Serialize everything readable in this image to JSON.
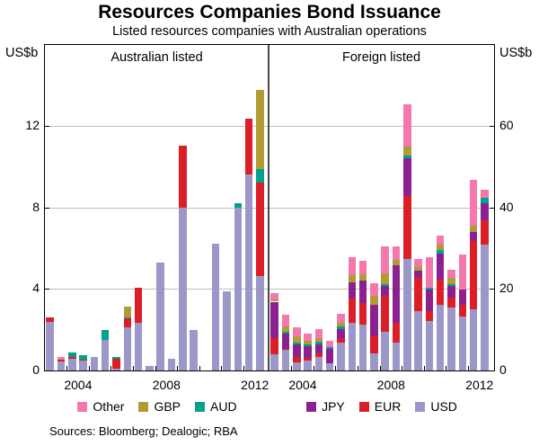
{
  "title": "Resources Companies Bond Issuance",
  "subtitle": "Listed resources companies with Australian operations",
  "axis": {
    "left_unit": "US$b",
    "right_unit": "US$b",
    "left_ticks": [
      0,
      4,
      8,
      12
    ],
    "right_ticks": [
      0,
      20,
      40,
      60
    ],
    "left_max": 16,
    "right_max": 80,
    "gridlines_left_scale": [
      4,
      8,
      12
    ]
  },
  "footer": {
    "sources": "Sources: Bloomberg; Dealogic; RBA"
  },
  "chart_data": {
    "type": "bar",
    "stacked": true,
    "frequency": "half-yearly",
    "grid": true,
    "categories": [
      "2003H1",
      "2003H2",
      "2004H1",
      "2004H2",
      "2005H1",
      "2005H2",
      "2006H1",
      "2006H2",
      "2007H1",
      "2007H2",
      "2008H1",
      "2008H2",
      "2009H1",
      "2009H2",
      "2010H1",
      "2010H2",
      "2011H1",
      "2011H2",
      "2012H1",
      "2012H2"
    ],
    "colors": {
      "Other": "#f478ad",
      "GBP": "#b09c33",
      "AUD": "#00a28f",
      "JPY": "#8b2191",
      "EUR": "#dc1f26",
      "USD": "#9b98c9"
    },
    "stack_order": [
      "USD",
      "EUR",
      "JPY",
      "AUD",
      "GBP",
      "Other"
    ],
    "legend": [
      {
        "label": "Other",
        "color": "#f478ad"
      },
      {
        "label": "GBP",
        "color": "#b09c33"
      },
      {
        "label": "AUD",
        "color": "#00a28f"
      },
      {
        "label": "JPY",
        "color": "#8b2191"
      },
      {
        "label": "EUR",
        "color": "#dc1f26"
      },
      {
        "label": "USD",
        "color": "#9b98c9"
      }
    ],
    "panels": [
      {
        "label": "Australian listed",
        "axis_side": "left",
        "ylim": [
          0,
          16
        ],
        "unit": "US$b",
        "x_tick_years": [
          2004,
          2008,
          2012
        ],
        "series": [
          {
            "name": "USD",
            "values": [
              2.35,
              0.4,
              0.55,
              0.45,
              0.62,
              1.5,
              0.05,
              2.1,
              2.3,
              0.2,
              5.3,
              0.55,
              8.0,
              1.95,
              0,
              6.2,
              3.85,
              8.0,
              9.6,
              4.6
            ]
          },
          {
            "name": "EUR",
            "values": [
              0.25,
              0.1,
              0.08,
              0.05,
              0,
              0,
              0.5,
              0.45,
              1.75,
              0,
              0,
              0,
              3.05,
              0,
              0,
              0,
              0,
              0,
              2.75,
              4.6
            ]
          },
          {
            "name": "JPY",
            "values": [
              0,
              0,
              0,
              0,
              0,
              0,
              0,
              0,
              0,
              0,
              0,
              0,
              0,
              0,
              0,
              0,
              0,
              0,
              0,
              0
            ]
          },
          {
            "name": "AUD",
            "values": [
              0,
              0,
              0.25,
              0.22,
              0,
              0.45,
              0.1,
              0.05,
              0,
              0,
              0,
              0,
              0,
              0,
              0,
              0,
              0,
              0.18,
              0,
              0.7
            ]
          },
          {
            "name": "GBP",
            "values": [
              0,
              0,
              0,
              0,
              0,
              0,
              0,
              0.5,
              0,
              0,
              0,
              0,
              0,
              0,
              0,
              0,
              0,
              0,
              0,
              3.85
            ]
          },
          {
            "name": "Other",
            "values": [
              0,
              0.15,
              0,
              0,
              0,
              0,
              0,
              0,
              0,
              0,
              0,
              0,
              0,
              0,
              0,
              0,
              0,
              0,
              0,
              0
            ]
          }
        ]
      },
      {
        "label": "Foreign listed",
        "axis_side": "right",
        "ylim": [
          0,
          80
        ],
        "unit": "US$b",
        "x_tick_years": [
          2004,
          2008,
          2012
        ],
        "series": [
          {
            "name": "USD",
            "values": [
              3.9,
              4.9,
              1.8,
              2.4,
              3.3,
              1.6,
              6.7,
              11.6,
              11.1,
              4.2,
              9.3,
              6.7,
              27.3,
              14.4,
              12.0,
              16.0,
              15.3,
              13.1,
              14.9,
              30.9
            ]
          },
          {
            "name": "EUR",
            "values": [
              4.0,
              0.3,
              1.5,
              0.5,
              0.9,
              0,
              1.1,
              6.0,
              5.3,
              4.0,
              8.9,
              4.9,
              15.4,
              8.3,
              2.4,
              6.2,
              2.5,
              2.9,
              16.9,
              5.8
            ]
          },
          {
            "name": "JPY",
            "values": [
              8.9,
              3.8,
              2.9,
              2.9,
              2.2,
              3.5,
              2.2,
              4.0,
              5.6,
              7.8,
              2.5,
              14.2,
              9.3,
              1.7,
              5.4,
              6.5,
              2.9,
              3.8,
              2.2,
              4.2
            ]
          },
          {
            "name": "AUD",
            "values": [
              0,
              0.3,
              0.5,
              0.4,
              0.5,
              0.5,
              0.7,
              0,
              0,
              0,
              0.4,
              0,
              0.7,
              0,
              0.5,
              0.9,
              0.4,
              0,
              0,
              1.4
            ]
          },
          {
            "name": "GBP",
            "values": [
              0.5,
              1.5,
              1.5,
              0.9,
              0.9,
              0,
              0.9,
              1.7,
              1.6,
              2.2,
              2.7,
              1.3,
              2.2,
              0.9,
              0,
              1.3,
              1.6,
              0,
              1.4,
              0
            ]
          },
          {
            "name": "Other",
            "values": [
              1.5,
              2.7,
              2.2,
              1.8,
              2.2,
              1.5,
              2.2,
              4.5,
              3.3,
              3.1,
              6.6,
              3.3,
              10.4,
              2.0,
              7.5,
              2.2,
              2.0,
              8.5,
              11.3,
              2.0
            ]
          }
        ]
      }
    ]
  }
}
